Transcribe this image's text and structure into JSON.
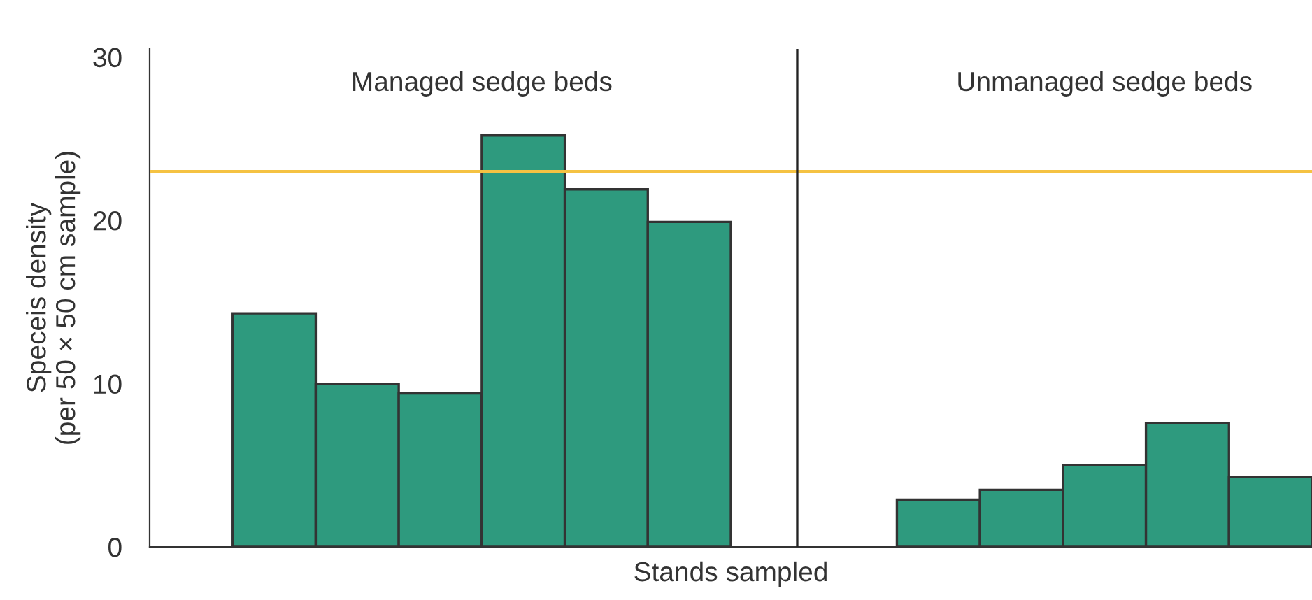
{
  "chart_data": {
    "type": "bar",
    "xlabel": "Stands sampled",
    "ylabel": "Speceis density\n(per 50 × 50 cm sample)",
    "categories": [
      null,
      null,
      null,
      null,
      null,
      null,
      null,
      null,
      null,
      null,
      null,
      null,
      null,
      null
    ],
    "values": [
      null,
      14.3,
      10.0,
      9.4,
      25.2,
      21.9,
      19.9,
      null,
      null,
      2.9,
      3.5,
      5.0,
      7.6,
      4.3
    ],
    "color": "#2e9a7e",
    "ylim": [
      0,
      30.5
    ],
    "yticks": [
      0,
      10,
      20,
      30
    ],
    "grid": false,
    "ref_lines": [
      {
        "axis": "y",
        "value": 23,
        "color": "#f5c242"
      }
    ],
    "annotations": [
      "Managed sedge beds",
      "Unmanaged sedge beds"
    ]
  }
}
